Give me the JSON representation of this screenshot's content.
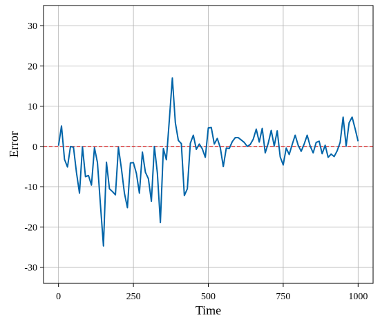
{
  "chart_data": {
    "type": "line",
    "title": "",
    "xlabel": "Time",
    "ylabel": "Error",
    "xlim": [
      -50,
      1050
    ],
    "ylim": [
      -34,
      35
    ],
    "xticks": [
      0,
      250,
      500,
      750,
      1000
    ],
    "yticks": [
      -30,
      -20,
      -10,
      0,
      10,
      20,
      30
    ],
    "grid": true,
    "legend": "none",
    "colors": {
      "series": "#0064a8",
      "reference": "#d62728",
      "grid": "#b0b0b0",
      "axes": "#000000"
    },
    "reference_line": {
      "y": 0,
      "style": "dashed"
    },
    "series": [
      {
        "x": [
          0,
          10,
          20,
          30,
          40,
          50,
          60,
          70,
          80,
          90,
          100,
          110,
          120,
          130,
          140,
          150,
          160,
          170,
          180,
          190,
          200,
          210,
          220,
          230,
          240,
          250,
          260,
          270,
          280,
          290,
          300,
          310,
          320,
          330,
          340,
          350,
          360,
          370,
          380,
          390,
          400,
          410,
          420,
          430,
          440,
          450,
          460,
          470,
          480,
          490,
          500,
          510,
          520,
          530,
          540,
          550,
          560,
          570,
          580,
          590,
          600,
          610,
          620,
          630,
          640,
          650,
          660,
          670,
          680,
          690,
          700,
          710,
          720,
          730,
          740,
          750,
          760,
          770,
          780,
          790,
          800,
          810,
          820,
          830,
          840,
          850,
          860,
          870,
          880,
          890,
          900,
          910,
          920,
          930,
          940,
          950,
          960,
          970,
          980,
          990,
          1000
        ],
        "values": [
          0.2,
          5.1,
          -3.2,
          -5.1,
          0.0,
          -0.2,
          -6.5,
          -11.6,
          -0.1,
          -7.5,
          -7.2,
          -9.6,
          -0.3,
          -4.0,
          -14.5,
          -24.7,
          -3.9,
          -10.5,
          -11.2,
          -12.0,
          -0.2,
          -5.5,
          -11.6,
          -15.2,
          -4.1,
          -4.0,
          -6.7,
          -11.6,
          -1.4,
          -6.4,
          -8.0,
          -13.6,
          0.0,
          -6.6,
          -18.9,
          -0.5,
          -3.3,
          6.7,
          17.0,
          5.9,
          1.5,
          0.7,
          -12.2,
          -10.5,
          0.8,
          2.8,
          -0.7,
          0.6,
          -0.6,
          -2.7,
          4.6,
          4.7,
          0.6,
          2.0,
          -0.3,
          -5.0,
          -0.4,
          -0.5,
          1.2,
          2.2,
          2.2,
          1.6,
          1.0,
          0.0,
          0.5,
          1.8,
          4.3,
          1.1,
          4.5,
          -1.6,
          0.8,
          4.0,
          0.1,
          3.9,
          -2.6,
          -4.6,
          -0.4,
          -2.0,
          0.5,
          2.8,
          0.3,
          -1.2,
          0.6,
          2.8,
          0.1,
          -1.6,
          1.0,
          1.3,
          -1.8,
          0.3,
          -2.7,
          -1.9,
          -2.5,
          -1.1,
          1.0,
          7.3,
          0.1,
          5.9,
          7.3,
          4.4,
          1.3
        ]
      }
    ]
  }
}
